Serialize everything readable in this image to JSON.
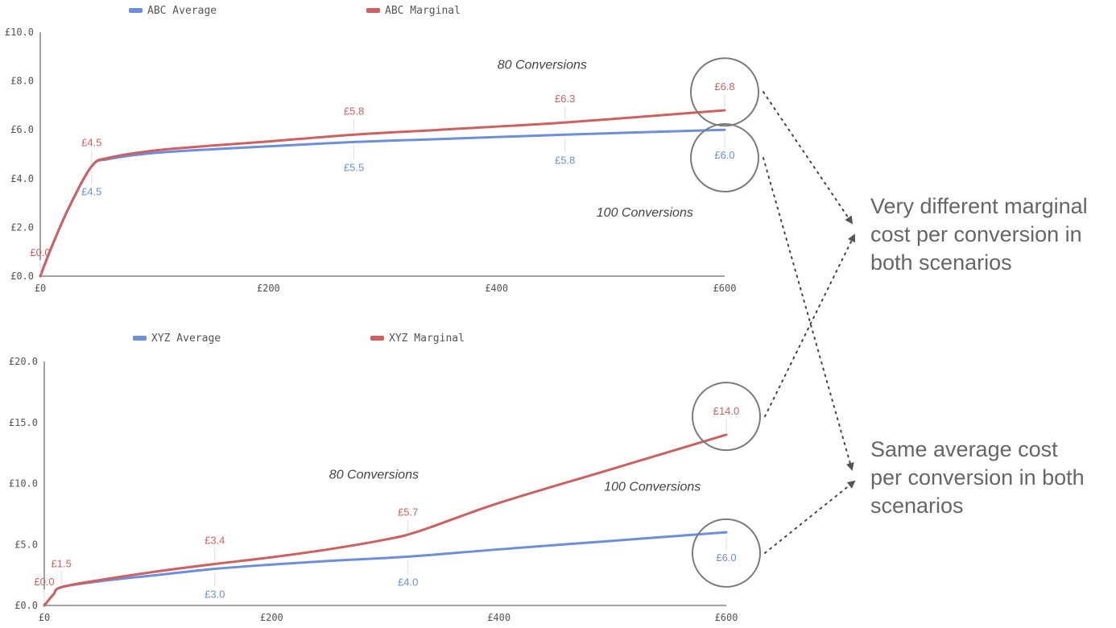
{
  "colors": {
    "average": "#6b8fdc",
    "marginal": "#d05f5f",
    "axis": "#444444",
    "circle": "#7a7a7a",
    "callout_text": "#666666",
    "label_text": "#555555"
  },
  "callouts": [
    {
      "lines": [
        "Very different marginal",
        "cost per conversion in",
        "both scenarios"
      ]
    },
    {
      "lines": [
        "Same average cost",
        "per conversion in both",
        "scenarios"
      ]
    }
  ],
  "chart_data": [
    {
      "type": "line",
      "title": "",
      "xlabel": "",
      "ylabel": "",
      "xlim": [
        0,
        600
      ],
      "ylim": [
        0,
        10
      ],
      "x_ticks": [
        "£0",
        "£200",
        "£400",
        "£600"
      ],
      "y_ticks": [
        "£0.0",
        "£2.0",
        "£4.0",
        "£6.0",
        "£8.0",
        "£10.0"
      ],
      "legend_position": "top",
      "grid": false,
      "series": [
        {
          "name": "ABC Average",
          "color": "#6b8fdc",
          "x": [
            0,
            10,
            25,
            45,
            60,
            100,
            150,
            200,
            275,
            350,
            460,
            600
          ],
          "y": [
            0,
            1.2,
            2.8,
            4.5,
            4.8,
            5.05,
            5.2,
            5.32,
            5.5,
            5.62,
            5.8,
            6.0
          ]
        },
        {
          "name": "ABC Marginal",
          "color": "#d05f5f",
          "x": [
            0,
            10,
            25,
            45,
            60,
            100,
            150,
            200,
            275,
            350,
            460,
            600
          ],
          "y": [
            0,
            1.2,
            2.8,
            4.5,
            4.85,
            5.15,
            5.35,
            5.52,
            5.8,
            6.0,
            6.3,
            6.8
          ]
        }
      ],
      "data_labels": [
        {
          "series": "ABC Marginal",
          "x": 0,
          "y": 0,
          "text": "£0.0",
          "pos": "above"
        },
        {
          "series": "ABC Marginal",
          "x": 45,
          "y": 4.5,
          "text": "£4.5",
          "pos": "above"
        },
        {
          "series": "ABC Average",
          "x": 45,
          "y": 4.5,
          "text": "£4.5",
          "pos": "below"
        },
        {
          "series": "ABC Marginal",
          "x": 275,
          "y": 5.8,
          "text": "£5.8",
          "pos": "above"
        },
        {
          "series": "ABC Average",
          "x": 275,
          "y": 5.5,
          "text": "£5.5",
          "pos": "below"
        },
        {
          "series": "ABC Marginal",
          "x": 460,
          "y": 6.3,
          "text": "£6.3",
          "pos": "above"
        },
        {
          "series": "ABC Average",
          "x": 460,
          "y": 5.8,
          "text": "£5.8",
          "pos": "below"
        },
        {
          "series": "ABC Marginal",
          "x": 600,
          "y": 6.8,
          "text": "£6.8",
          "pos": "above"
        },
        {
          "series": "ABC Average",
          "x": 600,
          "y": 6.0,
          "text": "£6.0",
          "pos": "below"
        }
      ],
      "annotations": [
        {
          "text": "80 Conversions",
          "x": 440,
          "y": 8.5
        },
        {
          "text": "100 Conversions",
          "x": 530,
          "y": 2.45
        }
      ],
      "highlights": [
        {
          "x": 600,
          "y": 7.55,
          "target_callout": 0
        },
        {
          "x": 600,
          "y": 4.85,
          "target_callout": 1
        }
      ]
    },
    {
      "type": "line",
      "title": "",
      "xlabel": "",
      "ylabel": "",
      "xlim": [
        0,
        600
      ],
      "ylim": [
        0,
        20
      ],
      "x_ticks": [
        "£0",
        "£200",
        "£400",
        "£600"
      ],
      "y_ticks": [
        "£0.0",
        "£5.0",
        "£10.0",
        "£15.0",
        "£20.0"
      ],
      "legend_position": "top",
      "grid": false,
      "series": [
        {
          "name": "XYZ Average",
          "color": "#6b8fdc",
          "x": [
            0,
            8,
            15,
            50,
            100,
            150,
            200,
            250,
            320,
            400,
            500,
            600
          ],
          "y": [
            0,
            0.9,
            1.5,
            2.0,
            2.5,
            3.0,
            3.35,
            3.65,
            4.0,
            4.6,
            5.3,
            6.0
          ]
        },
        {
          "name": "XYZ Marginal",
          "color": "#d05f5f",
          "x": [
            0,
            8,
            15,
            50,
            100,
            150,
            200,
            250,
            300,
            330,
            400,
            500,
            600
          ],
          "y": [
            0,
            0.9,
            1.5,
            2.1,
            2.8,
            3.4,
            3.95,
            4.6,
            5.4,
            6.1,
            8.4,
            11.2,
            14.0
          ]
        }
      ],
      "data_labels": [
        {
          "series": "XYZ Marginal",
          "x": 0,
          "y": 0,
          "text": "£0.0",
          "pos": "above"
        },
        {
          "series": "XYZ Marginal",
          "x": 15,
          "y": 1.5,
          "text": "£1.5",
          "pos": "above"
        },
        {
          "series": "XYZ Marginal",
          "x": 150,
          "y": 3.4,
          "text": "£3.4",
          "pos": "above"
        },
        {
          "series": "XYZ Average",
          "x": 150,
          "y": 3.0,
          "text": "£3.0",
          "pos": "below"
        },
        {
          "series": "XYZ Marginal",
          "x": 320,
          "y": 5.7,
          "text": "£5.7",
          "pos": "above"
        },
        {
          "series": "XYZ Average",
          "x": 320,
          "y": 4.0,
          "text": "£4.0",
          "pos": "below"
        },
        {
          "series": "XYZ Marginal",
          "x": 600,
          "y": 14.0,
          "text": "£14.0",
          "pos": "above"
        },
        {
          "series": "XYZ Average",
          "x": 600,
          "y": 6.0,
          "text": "£6.0",
          "pos": "below"
        }
      ],
      "annotations": [
        {
          "text": "80 Conversions",
          "x": 290,
          "y": 10.4
        },
        {
          "text": "100 Conversions",
          "x": 535,
          "y": 9.4
        }
      ],
      "highlights": [
        {
          "x": 600,
          "y": 15.5,
          "target_callout": 0
        },
        {
          "x": 600,
          "y": 4.3,
          "target_callout": 1
        }
      ]
    }
  ]
}
